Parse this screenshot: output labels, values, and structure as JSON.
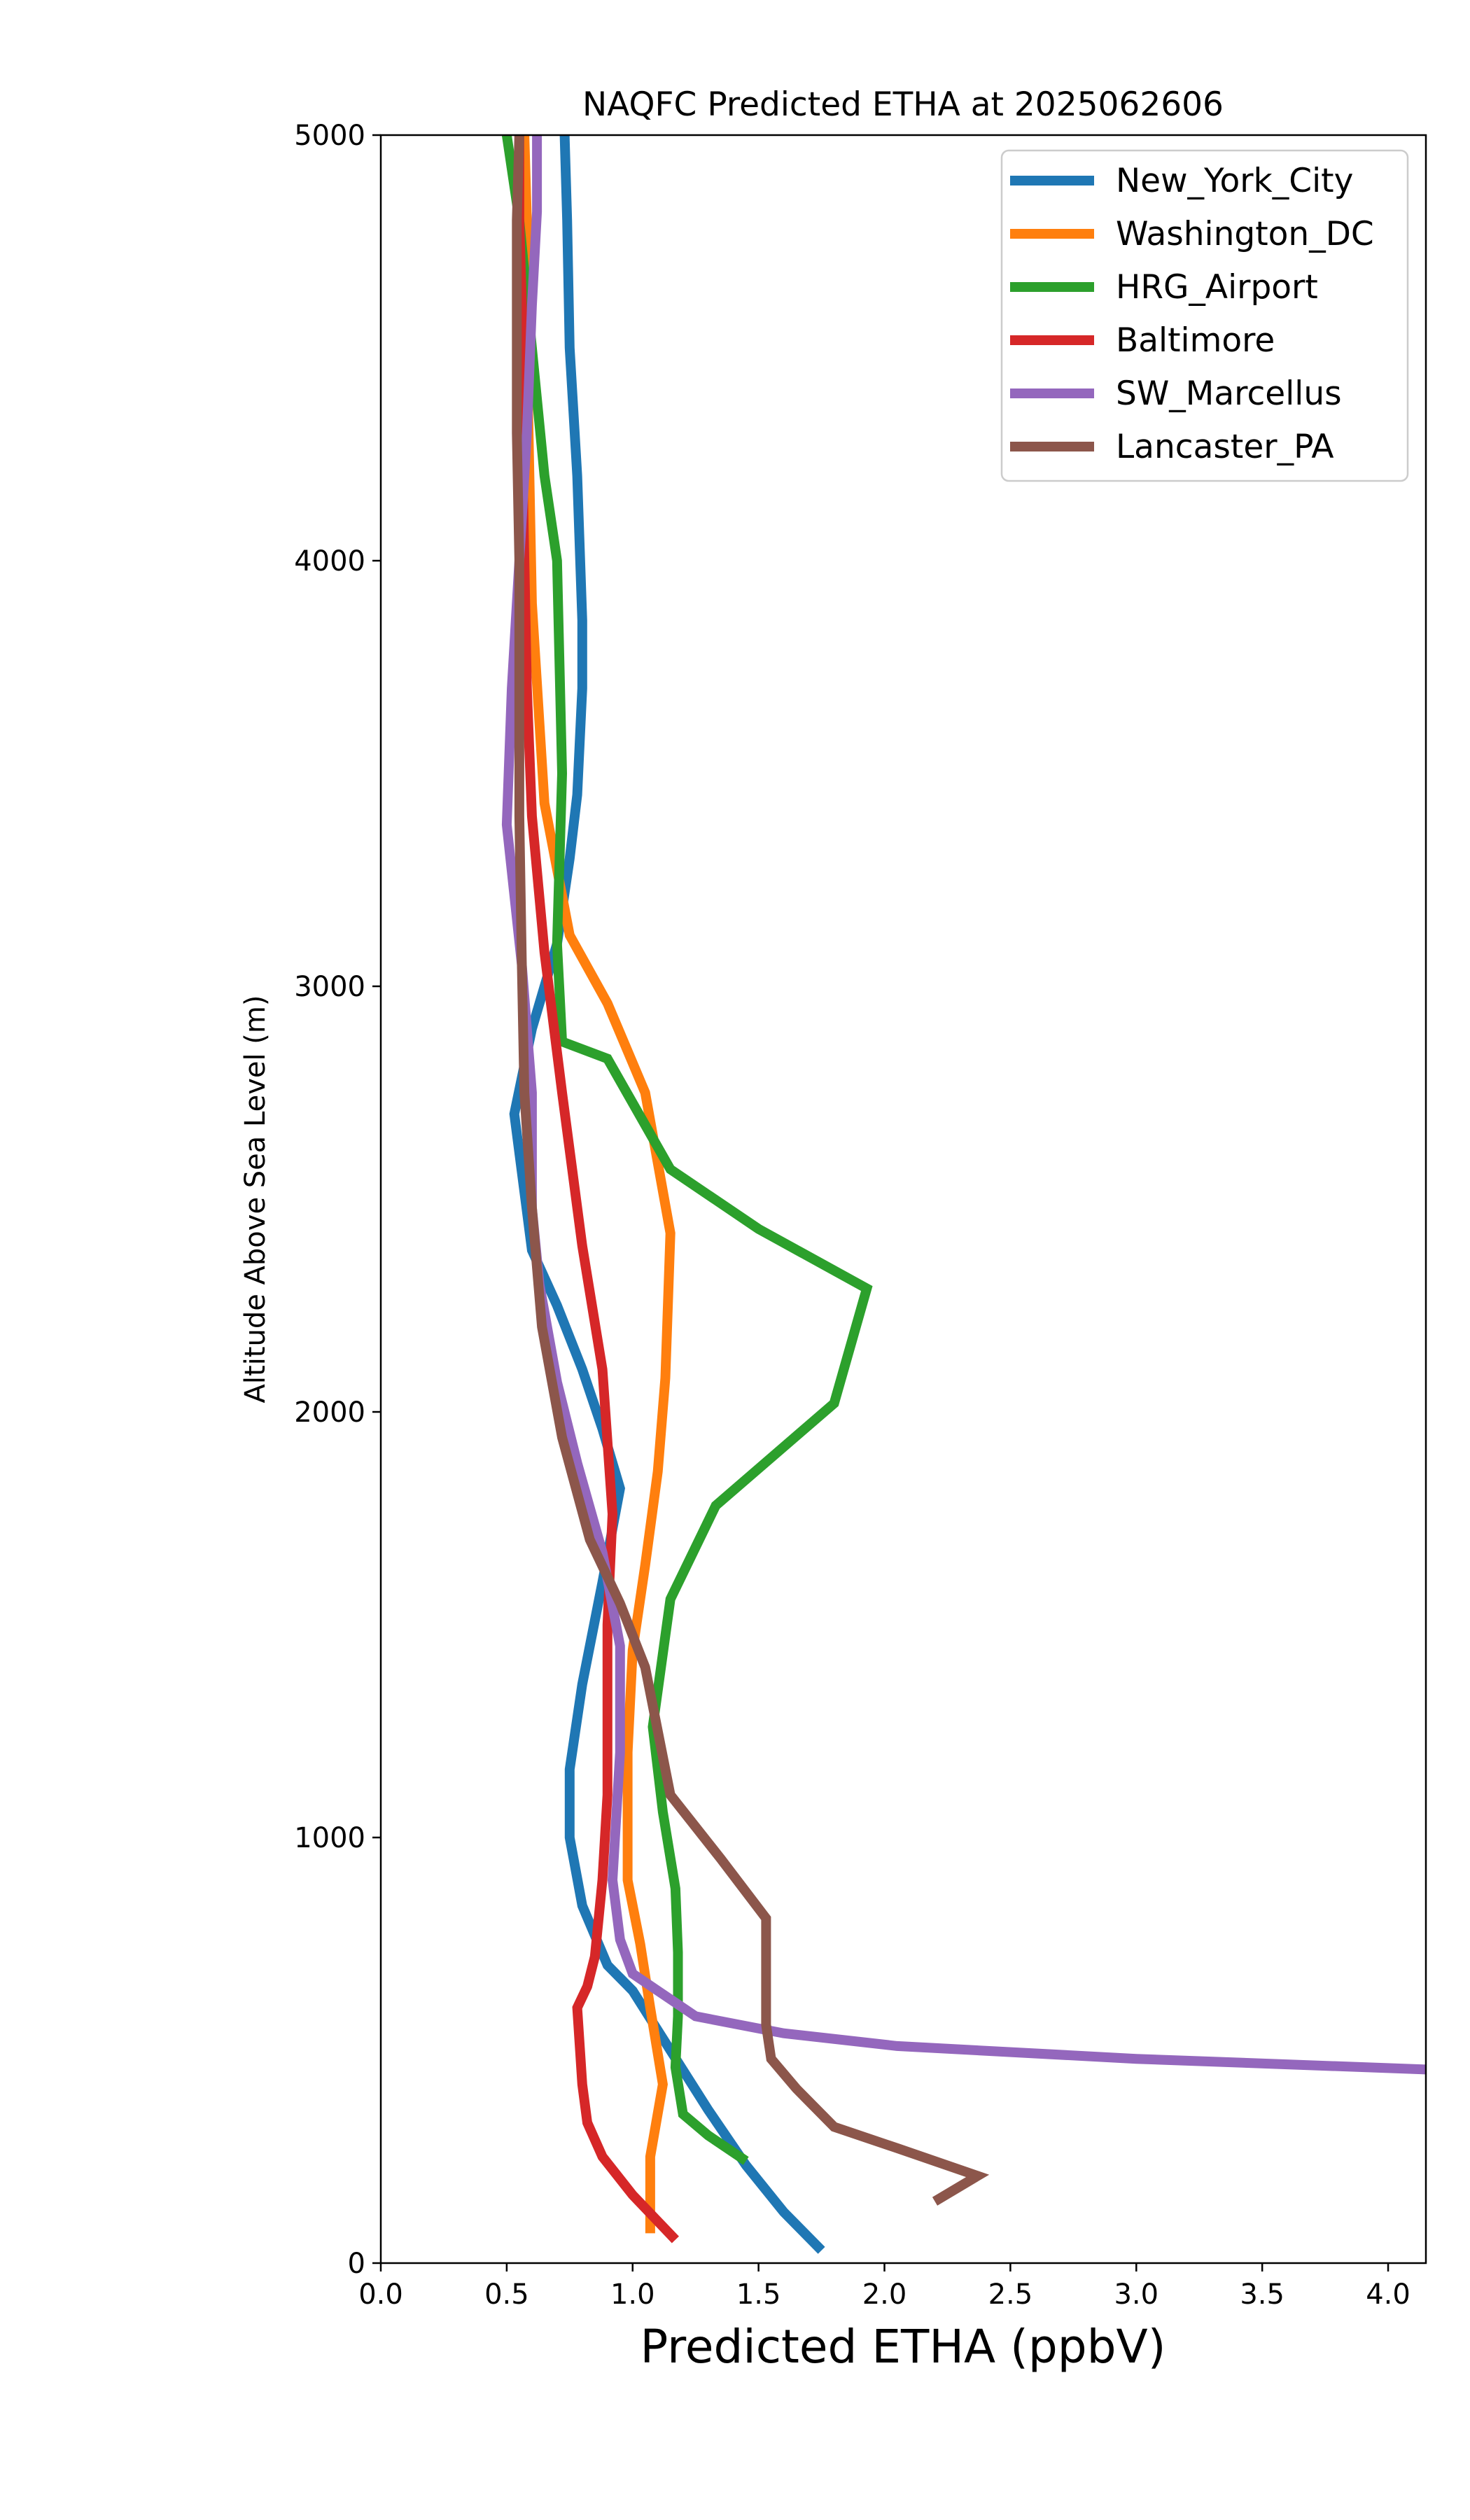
{
  "chart_data": {
    "type": "line",
    "title": "NAQFC Predicted ETHA at 2025062606",
    "xlabel": "Predicted ETHA (ppbV)",
    "ylabel": "Altitude Above Sea Level (m)",
    "xlim": [
      0,
      4.15
    ],
    "ylim": [
      0,
      5000
    ],
    "xticks": [
      "0.0",
      "0.5",
      "1.0",
      "1.5",
      "2.0",
      "2.5",
      "3.0",
      "3.5",
      "4.0"
    ],
    "xtick_values": [
      0,
      0.5,
      1.0,
      1.5,
      2.0,
      2.5,
      3.0,
      3.5,
      4.0
    ],
    "yticks": [
      "0",
      "1000",
      "2000",
      "3000",
      "4000",
      "5000"
    ],
    "ytick_values": [
      0,
      1000,
      2000,
      3000,
      4000,
      5000
    ],
    "grid": false,
    "legend_position": "upper right",
    "series": [
      {
        "name": "New_York_City",
        "color": "#1f77b4",
        "points": [
          [
            1.75,
            30
          ],
          [
            1.6,
            120
          ],
          [
            1.45,
            230
          ],
          [
            1.3,
            360
          ],
          [
            1.15,
            500
          ],
          [
            1.0,
            640
          ],
          [
            0.9,
            700
          ],
          [
            0.8,
            840
          ],
          [
            0.75,
            1000
          ],
          [
            0.75,
            1160
          ],
          [
            0.8,
            1360
          ],
          [
            0.88,
            1600
          ],
          [
            0.95,
            1820
          ],
          [
            0.88,
            1960
          ],
          [
            0.8,
            2100
          ],
          [
            0.7,
            2250
          ],
          [
            0.6,
            2380
          ],
          [
            0.53,
            2700
          ],
          [
            0.6,
            2900
          ],
          [
            0.7,
            3100
          ],
          [
            0.75,
            3300
          ],
          [
            0.78,
            3450
          ],
          [
            0.8,
            3700
          ],
          [
            0.8,
            3860
          ],
          [
            0.78,
            4200
          ],
          [
            0.75,
            4500
          ],
          [
            0.74,
            4800
          ],
          [
            0.73,
            5000
          ]
        ]
      },
      {
        "name": "Washington_DC",
        "color": "#ff7f0e",
        "points": [
          [
            1.07,
            70
          ],
          [
            1.07,
            250
          ],
          [
            1.12,
            420
          ],
          [
            1.07,
            600
          ],
          [
            1.03,
            750
          ],
          [
            0.98,
            900
          ],
          [
            0.98,
            1200
          ],
          [
            1.0,
            1440
          ],
          [
            1.05,
            1640
          ],
          [
            1.1,
            1860
          ],
          [
            1.13,
            2080
          ],
          [
            1.15,
            2420
          ],
          [
            1.05,
            2750
          ],
          [
            0.9,
            2960
          ],
          [
            0.75,
            3120
          ],
          [
            0.65,
            3430
          ],
          [
            0.6,
            3900
          ],
          [
            0.59,
            4200
          ],
          [
            0.58,
            4500
          ],
          [
            0.58,
            4800
          ],
          [
            0.57,
            5000
          ]
        ]
      },
      {
        "name": "HRG_Airport",
        "color": "#2ca02c",
        "points": [
          [
            1.45,
            240
          ],
          [
            1.3,
            300
          ],
          [
            1.2,
            350
          ],
          [
            1.17,
            460
          ],
          [
            1.18,
            580
          ],
          [
            1.18,
            730
          ],
          [
            1.17,
            880
          ],
          [
            1.12,
            1060
          ],
          [
            1.08,
            1260
          ],
          [
            1.15,
            1560
          ],
          [
            1.33,
            1780
          ],
          [
            1.8,
            2020
          ],
          [
            1.93,
            2290
          ],
          [
            1.5,
            2430
          ],
          [
            1.15,
            2570
          ],
          [
            0.9,
            2830
          ],
          [
            0.72,
            2870
          ],
          [
            0.7,
            3100
          ],
          [
            0.72,
            3500
          ],
          [
            0.7,
            4000
          ],
          [
            0.65,
            4200
          ],
          [
            0.6,
            4500
          ],
          [
            0.55,
            4800
          ],
          [
            0.5,
            5000
          ]
        ]
      },
      {
        "name": "Baltimore",
        "color": "#d62728",
        "points": [
          [
            1.17,
            55
          ],
          [
            1.0,
            160
          ],
          [
            0.88,
            250
          ],
          [
            0.82,
            330
          ],
          [
            0.8,
            420
          ],
          [
            0.78,
            600
          ],
          [
            0.82,
            650
          ],
          [
            0.85,
            720
          ],
          [
            0.88,
            900
          ],
          [
            0.9,
            1100
          ],
          [
            0.9,
            1500
          ],
          [
            0.92,
            1760
          ],
          [
            0.88,
            2100
          ],
          [
            0.8,
            2390
          ],
          [
            0.72,
            2750
          ],
          [
            0.65,
            3080
          ],
          [
            0.6,
            3400
          ],
          [
            0.58,
            3700
          ],
          [
            0.57,
            4000
          ],
          [
            0.56,
            4300
          ],
          [
            0.56,
            4600
          ],
          [
            0.55,
            4800
          ],
          [
            0.55,
            5000
          ]
        ]
      },
      {
        "name": "SW_Marcellus",
        "color": "#9467bd",
        "points": [
          [
            4.15,
            455
          ],
          [
            3.0,
            480
          ],
          [
            2.05,
            510
          ],
          [
            1.6,
            540
          ],
          [
            1.25,
            580
          ],
          [
            1.1,
            640
          ],
          [
            1.0,
            680
          ],
          [
            0.95,
            760
          ],
          [
            0.92,
            900
          ],
          [
            0.95,
            1200
          ],
          [
            0.95,
            1450
          ],
          [
            0.88,
            1670
          ],
          [
            0.78,
            1880
          ],
          [
            0.7,
            2070
          ],
          [
            0.63,
            2300
          ],
          [
            0.6,
            2480
          ],
          [
            0.6,
            2750
          ],
          [
            0.56,
            3050
          ],
          [
            0.5,
            3380
          ],
          [
            0.52,
            3700
          ],
          [
            0.55,
            4000
          ],
          [
            0.58,
            4300
          ],
          [
            0.6,
            4600
          ],
          [
            0.62,
            4820
          ],
          [
            0.62,
            5000
          ]
        ]
      },
      {
        "name": "Lancaster_PA",
        "color": "#8c564b",
        "points": [
          [
            2.2,
            145
          ],
          [
            2.37,
            205
          ],
          [
            2.05,
            270
          ],
          [
            1.8,
            320
          ],
          [
            1.65,
            410
          ],
          [
            1.55,
            480
          ],
          [
            1.53,
            560
          ],
          [
            1.53,
            700
          ],
          [
            1.53,
            810
          ],
          [
            1.35,
            950
          ],
          [
            1.15,
            1100
          ],
          [
            1.05,
            1400
          ],
          [
            0.95,
            1550
          ],
          [
            0.83,
            1700
          ],
          [
            0.72,
            1940
          ],
          [
            0.64,
            2200
          ],
          [
            0.6,
            2480
          ],
          [
            0.57,
            2750
          ],
          [
            0.56,
            3050
          ],
          [
            0.55,
            3400
          ],
          [
            0.55,
            3700
          ],
          [
            0.55,
            4000
          ],
          [
            0.54,
            4300
          ],
          [
            0.54,
            4600
          ],
          [
            0.54,
            4800
          ],
          [
            0.55,
            5000
          ]
        ]
      }
    ]
  }
}
